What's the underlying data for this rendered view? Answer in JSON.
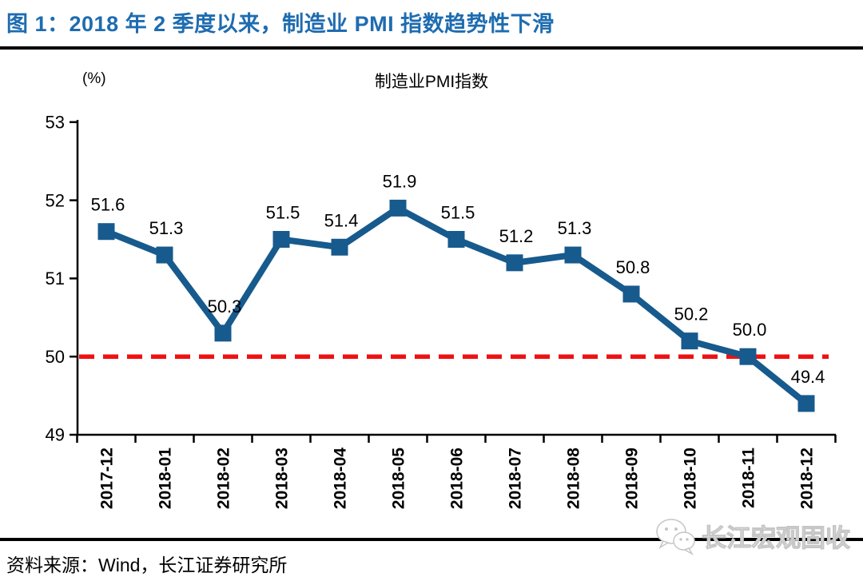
{
  "header": {
    "figure_title": "图 1：2018 年 2 季度以来，制造业 PMI 指数趋势性下滑"
  },
  "chart_data": {
    "type": "line",
    "title": "制造业PMI指数",
    "unit_label": "(%)",
    "categories": [
      "2017-12",
      "2018-01",
      "2018-02",
      "2018-03",
      "2018-04",
      "2018-05",
      "2018-06",
      "2018-07",
      "2018-08",
      "2018-09",
      "2018-10",
      "2018-11",
      "2018-12"
    ],
    "series": [
      {
        "name": "制造业PMI指数",
        "values": [
          51.6,
          51.3,
          50.3,
          51.5,
          51.4,
          51.9,
          51.5,
          51.2,
          51.3,
          50.8,
          50.2,
          50.0,
          49.4
        ]
      }
    ],
    "ylim": [
      49,
      53
    ],
    "yticks": [
      49,
      50,
      51,
      52,
      53
    ],
    "reference_line": {
      "value": 50,
      "style": "dashed"
    },
    "grid": false,
    "legend_position": "none",
    "data_labels": true,
    "data_label_decimals": 1
  },
  "footer": {
    "source": "资料来源：Wind，长江证券研究所",
    "watermark": "长江宏观固收"
  },
  "colors": {
    "title_blue": "#1e6cb0",
    "line_blue": "#175a8d",
    "reference_red": "#ee1111",
    "axis_black": "#000000",
    "text_black": "#000000",
    "watermark_gray": "#c6c6c6"
  }
}
